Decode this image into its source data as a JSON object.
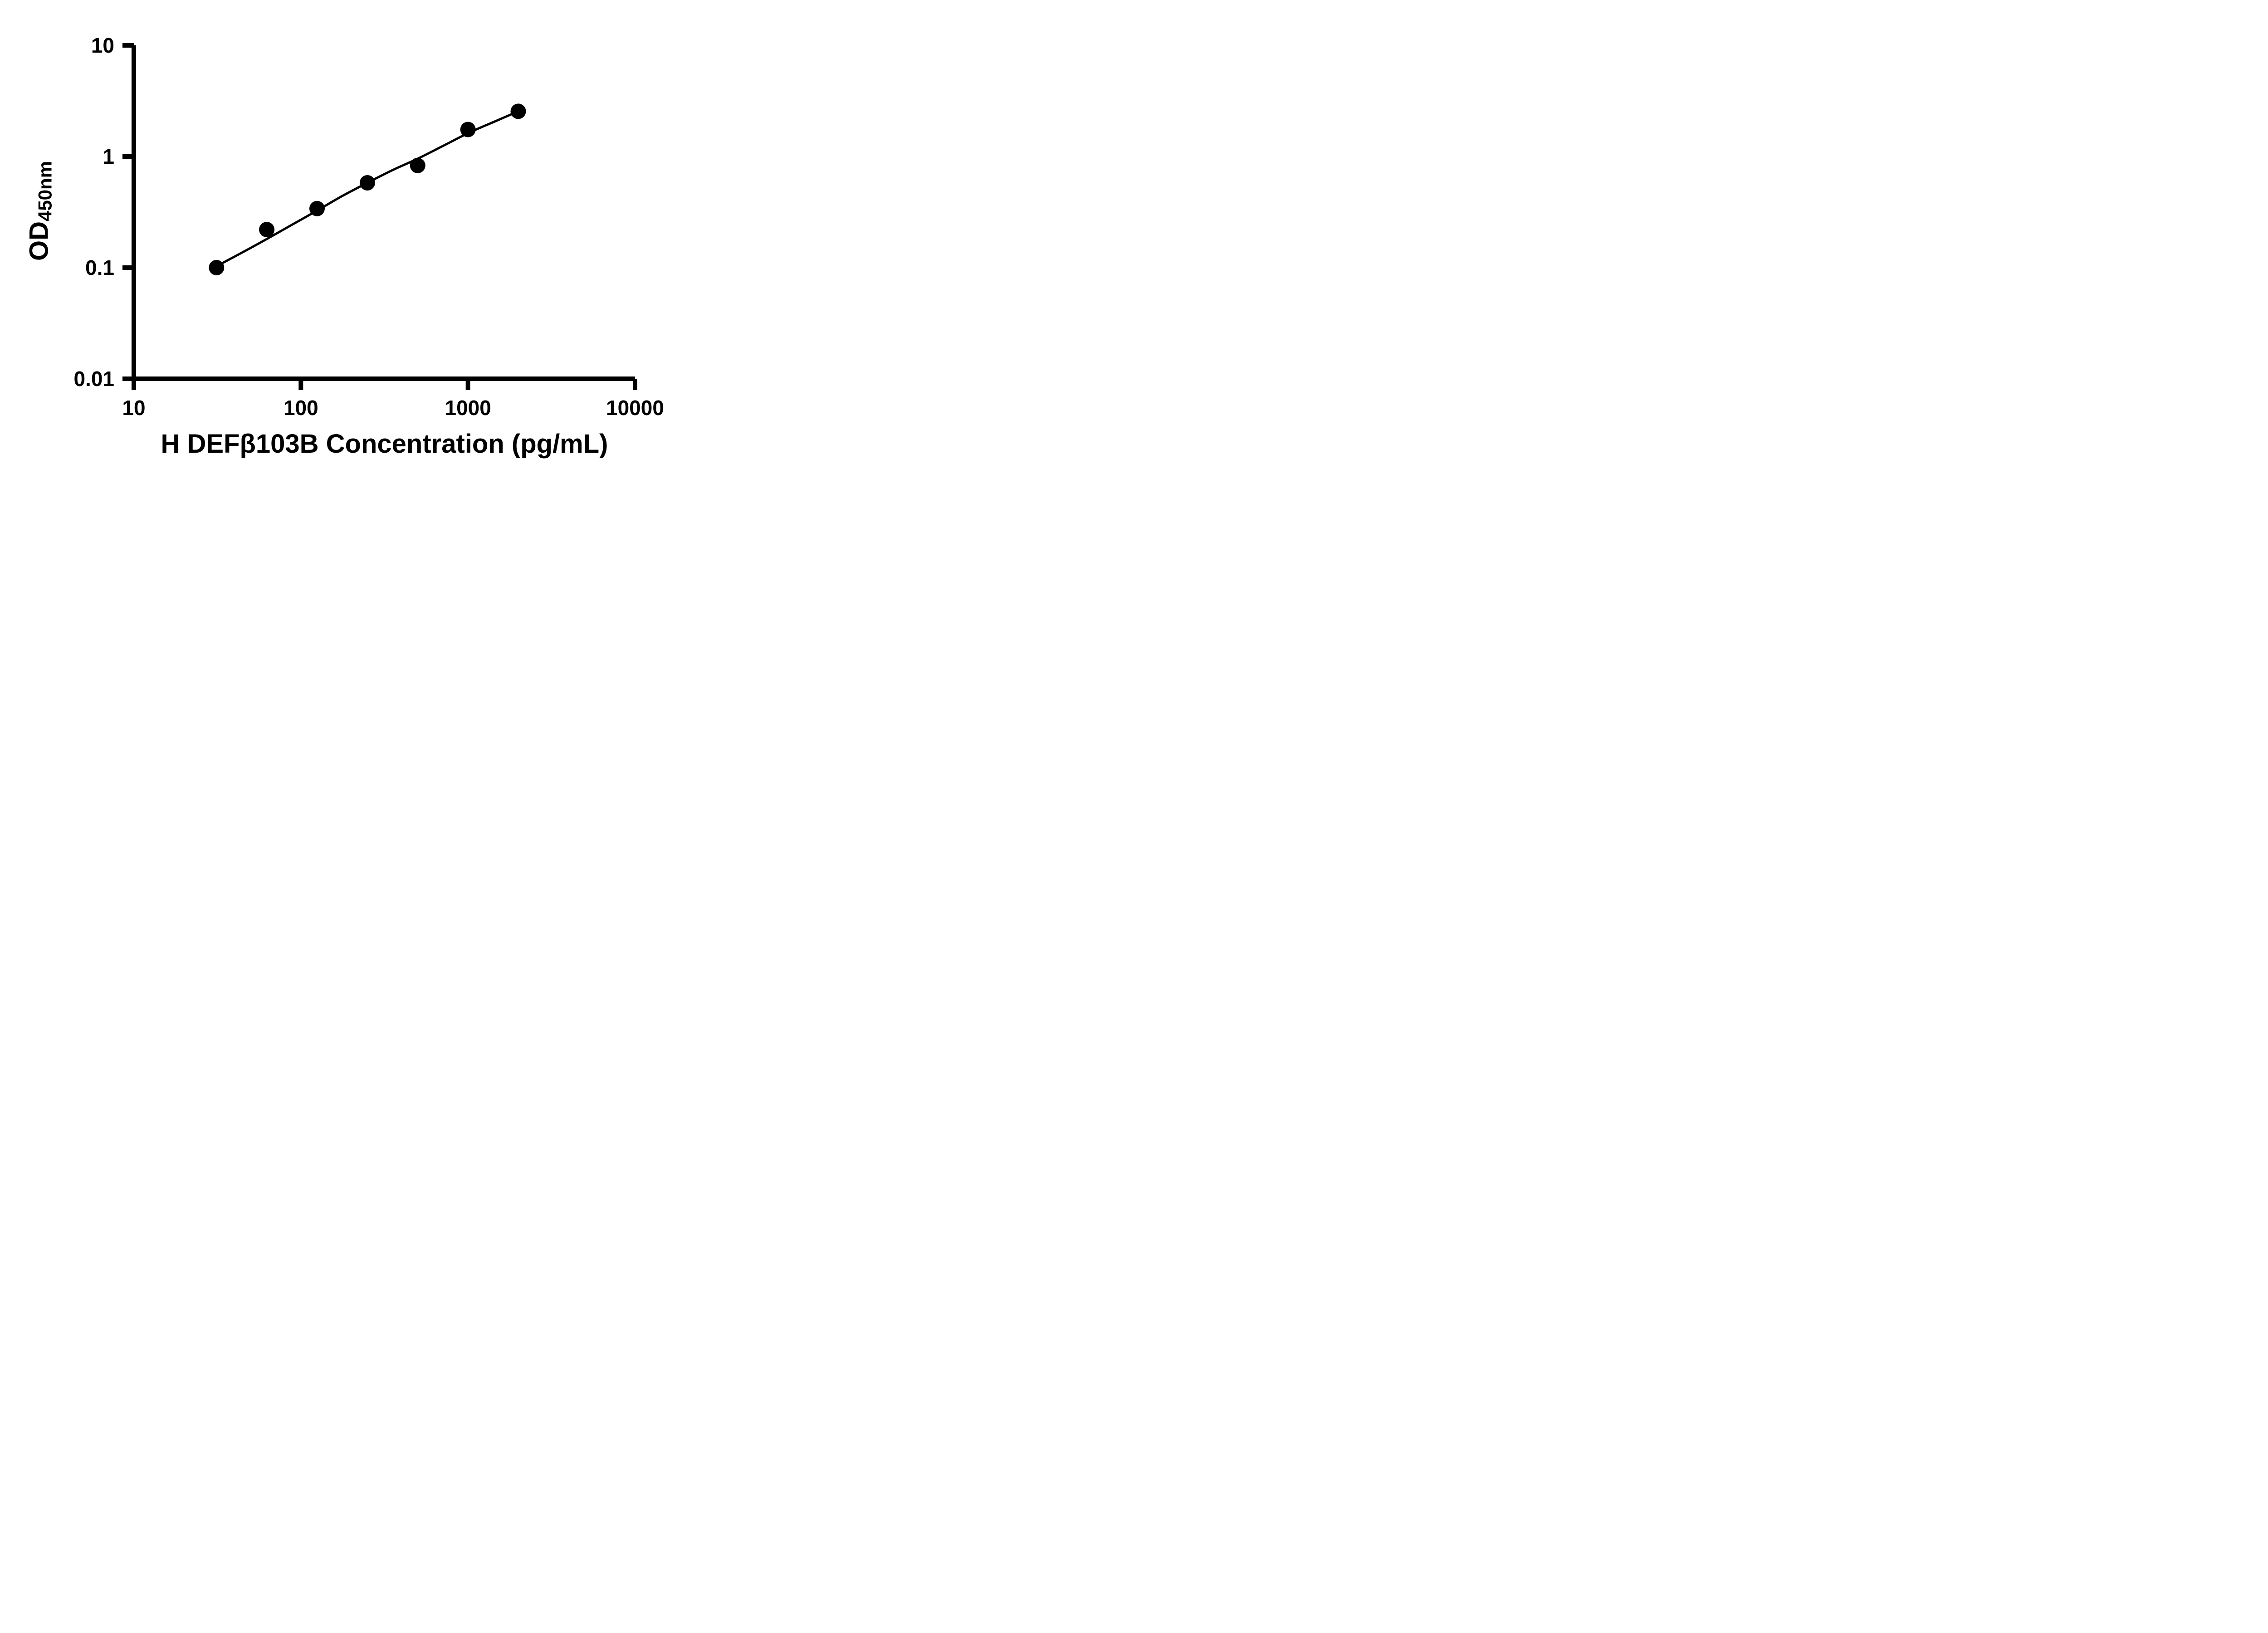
{
  "chart_data": {
    "type": "scatter",
    "title": "",
    "xlabel": "H DEFβ103B Concentration (pg/mL)",
    "ylabel_main": "OD",
    "ylabel_sub": "450nm",
    "x_scale": "log",
    "y_scale": "log",
    "xlim": [
      10,
      10000
    ],
    "ylim": [
      0.01,
      10
    ],
    "grid": false,
    "legend": "none",
    "x_ticks": {
      "values": [
        10,
        100,
        1000,
        10000
      ],
      "labels": [
        "10",
        "100",
        "1000",
        "10000"
      ]
    },
    "y_ticks": {
      "values": [
        0.01,
        0.1,
        1,
        10
      ],
      "labels": [
        "0.01",
        "0.1",
        "1",
        "10"
      ]
    },
    "points": {
      "x": [
        31.25,
        62.5,
        125,
        250,
        500,
        1000,
        2000
      ],
      "y": [
        0.1,
        0.22,
        0.34,
        0.58,
        0.83,
        1.75,
        2.55
      ]
    },
    "fit_curve": {
      "x": [
        31.25,
        44.2,
        62.5,
        88.4,
        125,
        176.8,
        250,
        353.6,
        500,
        707,
        1000,
        1414,
        2000
      ],
      "y": [
        0.103,
        0.136,
        0.181,
        0.243,
        0.326,
        0.441,
        0.58,
        0.754,
        0.955,
        1.242,
        1.62,
        2.035,
        2.55
      ]
    },
    "colors": {
      "axis": "#000000",
      "points": "#000000",
      "curve": "#000000",
      "text": "#000000",
      "background": "#ffffff"
    }
  }
}
